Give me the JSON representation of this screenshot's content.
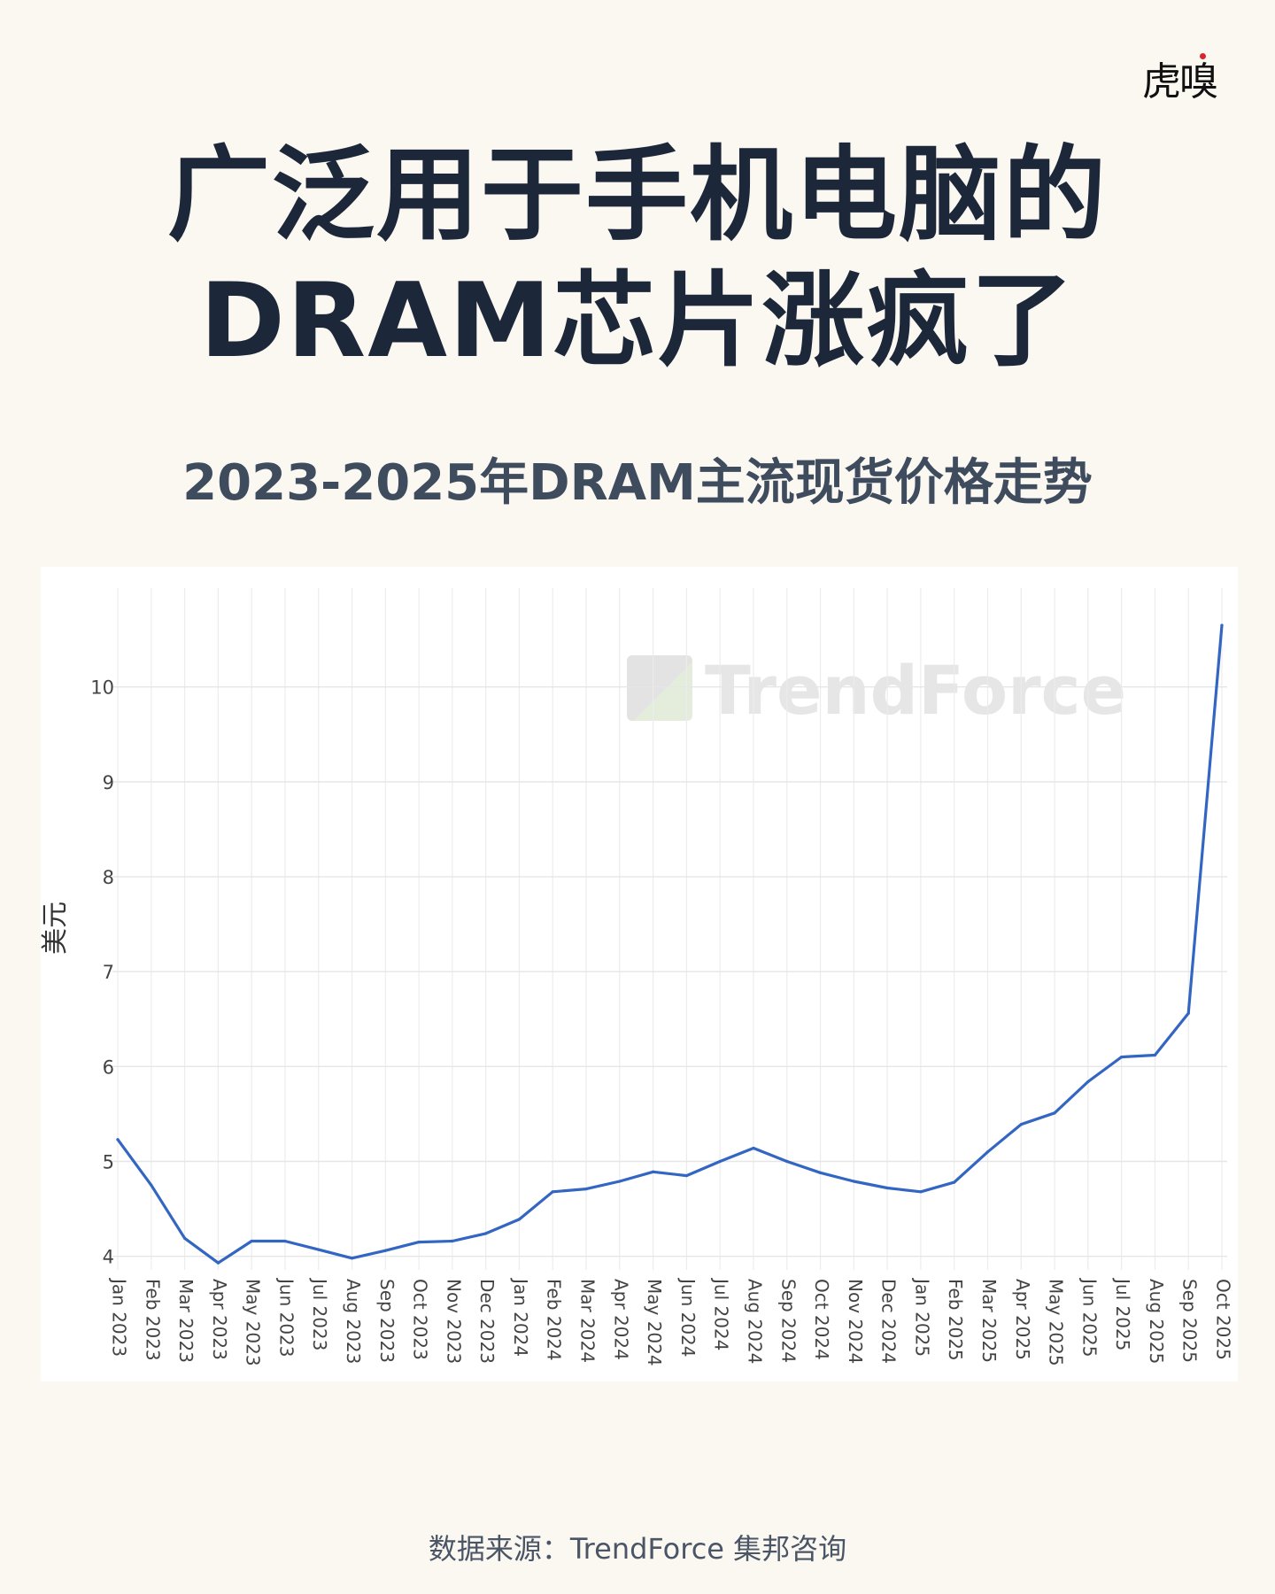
{
  "brand": {
    "logo_text": "虎嗅"
  },
  "headline": {
    "line1": "广泛用于手机电脑的",
    "line2": "DRAM芯片涨疯了"
  },
  "subtitle": "2023-2025年DRAM主流现货价格走势",
  "watermark": "TrendForce",
  "source": "数据来源：TrendForce 集邦咨询",
  "chart_data": {
    "type": "line",
    "title": "",
    "xlabel": "",
    "ylabel": "美元",
    "ylim": [
      3.95,
      10.8
    ],
    "yticks": [
      4,
      5,
      6,
      7,
      8,
      9,
      10
    ],
    "grid": true,
    "line_color": "#3366c2",
    "categories": [
      "Jan 2023",
      "Feb 2023",
      "Mar 2023",
      "Apr 2023",
      "May 2023",
      "Jun 2023",
      "Jul 2023",
      "Aug 2023",
      "Sep 2023",
      "Oct 2023",
      "Nov 2023",
      "Dec 2023",
      "Jan 2024",
      "Feb 2024",
      "Mar 2024",
      "Apr 2024",
      "May 2024",
      "Jun 2024",
      "Jul 2024",
      "Aug 2024",
      "Sep 2024",
      "Oct 2024",
      "Nov 2024",
      "Dec 2024",
      "Jan 2025",
      "Feb 2025",
      "Mar 2025",
      "Apr 2025",
      "May 2025",
      "Jun 2025",
      "Jul 2025",
      "Aug 2025",
      "Sep 2025",
      "Oct 2025"
    ],
    "values": [
      5.23,
      4.75,
      4.19,
      3.93,
      4.16,
      4.16,
      4.07,
      3.98,
      4.06,
      4.15,
      4.16,
      4.24,
      4.39,
      4.68,
      4.71,
      4.79,
      4.89,
      4.85,
      5.0,
      5.14,
      5.0,
      4.88,
      4.79,
      4.72,
      4.68,
      4.78,
      5.1,
      5.39,
      5.51,
      5.84,
      6.1,
      6.12,
      6.56,
      10.65
    ]
  }
}
